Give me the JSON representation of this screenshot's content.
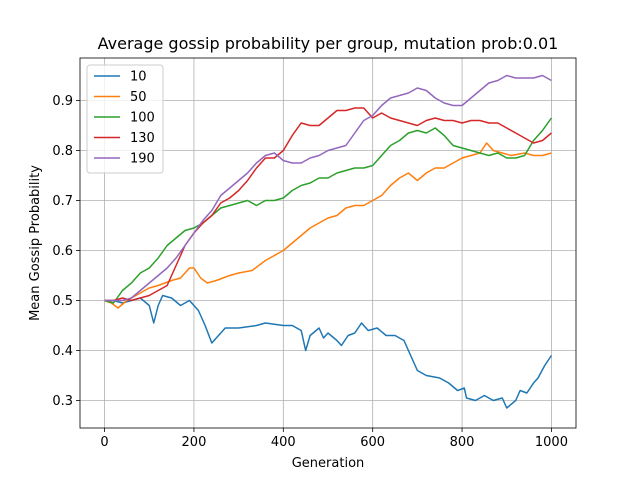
{
  "chart_data": {
    "type": "line",
    "title": "Average gossip probability per group, mutation prob:0.01",
    "xlabel": "Generation",
    "ylabel": "Mean Gossip Probability",
    "xlim": [
      -55,
      1055
    ],
    "ylim": [
      0.245,
      0.985
    ],
    "xticks": [
      0,
      200,
      400,
      600,
      800,
      1000
    ],
    "yticks": [
      0.3,
      0.4,
      0.5,
      0.6,
      0.7,
      0.8,
      0.9
    ],
    "grid": true,
    "legend_position": "top-left",
    "series": [
      {
        "name": "10",
        "color": "#1f77b4",
        "points": [
          [
            0,
            0.5
          ],
          [
            20,
            0.5
          ],
          [
            40,
            0.495
          ],
          [
            60,
            0.5
          ],
          [
            80,
            0.505
          ],
          [
            100,
            0.49
          ],
          [
            110,
            0.455
          ],
          [
            120,
            0.49
          ],
          [
            130,
            0.51
          ],
          [
            150,
            0.505
          ],
          [
            170,
            0.49
          ],
          [
            190,
            0.5
          ],
          [
            210,
            0.48
          ],
          [
            225,
            0.45
          ],
          [
            240,
            0.415
          ],
          [
            255,
            0.43
          ],
          [
            270,
            0.445
          ],
          [
            300,
            0.445
          ],
          [
            340,
            0.45
          ],
          [
            360,
            0.455
          ],
          [
            400,
            0.45
          ],
          [
            420,
            0.45
          ],
          [
            440,
            0.44
          ],
          [
            450,
            0.4
          ],
          [
            460,
            0.43
          ],
          [
            480,
            0.445
          ],
          [
            490,
            0.425
          ],
          [
            500,
            0.435
          ],
          [
            520,
            0.42
          ],
          [
            530,
            0.41
          ],
          [
            545,
            0.43
          ],
          [
            560,
            0.435
          ],
          [
            575,
            0.455
          ],
          [
            590,
            0.44
          ],
          [
            610,
            0.445
          ],
          [
            630,
            0.43
          ],
          [
            650,
            0.43
          ],
          [
            670,
            0.42
          ],
          [
            685,
            0.39
          ],
          [
            700,
            0.36
          ],
          [
            720,
            0.35
          ],
          [
            750,
            0.345
          ],
          [
            770,
            0.335
          ],
          [
            790,
            0.32
          ],
          [
            805,
            0.325
          ],
          [
            810,
            0.305
          ],
          [
            830,
            0.3
          ],
          [
            850,
            0.31
          ],
          [
            870,
            0.3
          ],
          [
            890,
            0.305
          ],
          [
            900,
            0.285
          ],
          [
            920,
            0.3
          ],
          [
            930,
            0.32
          ],
          [
            945,
            0.315
          ],
          [
            960,
            0.335
          ],
          [
            970,
            0.345
          ],
          [
            985,
            0.37
          ],
          [
            1000,
            0.39
          ]
        ]
      },
      {
        "name": "50",
        "color": "#ff7f0e",
        "points": [
          [
            0,
            0.5
          ],
          [
            15,
            0.495
          ],
          [
            30,
            0.485
          ],
          [
            50,
            0.5
          ],
          [
            70,
            0.51
          ],
          [
            100,
            0.525
          ],
          [
            120,
            0.53
          ],
          [
            150,
            0.54
          ],
          [
            170,
            0.545
          ],
          [
            190,
            0.565
          ],
          [
            200,
            0.565
          ],
          [
            215,
            0.545
          ],
          [
            230,
            0.535
          ],
          [
            250,
            0.54
          ],
          [
            280,
            0.55
          ],
          [
            300,
            0.555
          ],
          [
            330,
            0.56
          ],
          [
            360,
            0.58
          ],
          [
            380,
            0.59
          ],
          [
            400,
            0.6
          ],
          [
            420,
            0.615
          ],
          [
            440,
            0.63
          ],
          [
            460,
            0.645
          ],
          [
            480,
            0.655
          ],
          [
            500,
            0.665
          ],
          [
            520,
            0.67
          ],
          [
            540,
            0.685
          ],
          [
            560,
            0.69
          ],
          [
            580,
            0.69
          ],
          [
            600,
            0.7
          ],
          [
            620,
            0.71
          ],
          [
            640,
            0.73
          ],
          [
            660,
            0.745
          ],
          [
            680,
            0.755
          ],
          [
            700,
            0.74
          ],
          [
            720,
            0.755
          ],
          [
            740,
            0.765
          ],
          [
            760,
            0.765
          ],
          [
            780,
            0.775
          ],
          [
            800,
            0.785
          ],
          [
            820,
            0.79
          ],
          [
            840,
            0.795
          ],
          [
            855,
            0.815
          ],
          [
            870,
            0.8
          ],
          [
            890,
            0.795
          ],
          [
            910,
            0.79
          ],
          [
            940,
            0.795
          ],
          [
            960,
            0.79
          ],
          [
            980,
            0.79
          ],
          [
            1000,
            0.795
          ]
        ]
      },
      {
        "name": "100",
        "color": "#2ca02c",
        "points": [
          [
            0,
            0.5
          ],
          [
            20,
            0.495
          ],
          [
            40,
            0.52
          ],
          [
            60,
            0.535
          ],
          [
            80,
            0.555
          ],
          [
            100,
            0.565
          ],
          [
            120,
            0.585
          ],
          [
            140,
            0.61
          ],
          [
            160,
            0.625
          ],
          [
            180,
            0.64
          ],
          [
            200,
            0.645
          ],
          [
            220,
            0.655
          ],
          [
            240,
            0.67
          ],
          [
            260,
            0.685
          ],
          [
            280,
            0.69
          ],
          [
            300,
            0.695
          ],
          [
            320,
            0.7
          ],
          [
            340,
            0.69
          ],
          [
            360,
            0.7
          ],
          [
            380,
            0.7
          ],
          [
            400,
            0.705
          ],
          [
            420,
            0.72
          ],
          [
            440,
            0.73
          ],
          [
            460,
            0.735
          ],
          [
            480,
            0.745
          ],
          [
            500,
            0.745
          ],
          [
            520,
            0.755
          ],
          [
            540,
            0.76
          ],
          [
            560,
            0.765
          ],
          [
            580,
            0.765
          ],
          [
            600,
            0.77
          ],
          [
            620,
            0.79
          ],
          [
            640,
            0.81
          ],
          [
            660,
            0.82
          ],
          [
            680,
            0.835
          ],
          [
            700,
            0.84
          ],
          [
            720,
            0.835
          ],
          [
            740,
            0.845
          ],
          [
            760,
            0.83
          ],
          [
            780,
            0.81
          ],
          [
            800,
            0.805
          ],
          [
            820,
            0.8
          ],
          [
            840,
            0.795
          ],
          [
            860,
            0.79
          ],
          [
            880,
            0.795
          ],
          [
            900,
            0.785
          ],
          [
            920,
            0.785
          ],
          [
            940,
            0.79
          ],
          [
            960,
            0.82
          ],
          [
            980,
            0.84
          ],
          [
            1000,
            0.865
          ]
        ]
      },
      {
        "name": "130",
        "color": "#d62728",
        "points": [
          [
            0,
            0.5
          ],
          [
            20,
            0.5
          ],
          [
            40,
            0.505
          ],
          [
            60,
            0.5
          ],
          [
            80,
            0.505
          ],
          [
            100,
            0.51
          ],
          [
            120,
            0.52
          ],
          [
            140,
            0.53
          ],
          [
            160,
            0.57
          ],
          [
            180,
            0.61
          ],
          [
            200,
            0.635
          ],
          [
            220,
            0.655
          ],
          [
            240,
            0.67
          ],
          [
            260,
            0.695
          ],
          [
            280,
            0.705
          ],
          [
            300,
            0.72
          ],
          [
            320,
            0.74
          ],
          [
            340,
            0.765
          ],
          [
            360,
            0.785
          ],
          [
            380,
            0.785
          ],
          [
            400,
            0.8
          ],
          [
            420,
            0.83
          ],
          [
            440,
            0.855
          ],
          [
            460,
            0.85
          ],
          [
            480,
            0.85
          ],
          [
            500,
            0.865
          ],
          [
            520,
            0.88
          ],
          [
            540,
            0.88
          ],
          [
            560,
            0.885
          ],
          [
            580,
            0.885
          ],
          [
            600,
            0.865
          ],
          [
            620,
            0.875
          ],
          [
            640,
            0.865
          ],
          [
            660,
            0.86
          ],
          [
            680,
            0.855
          ],
          [
            700,
            0.85
          ],
          [
            720,
            0.86
          ],
          [
            740,
            0.865
          ],
          [
            760,
            0.86
          ],
          [
            780,
            0.86
          ],
          [
            800,
            0.855
          ],
          [
            820,
            0.86
          ],
          [
            840,
            0.86
          ],
          [
            860,
            0.855
          ],
          [
            880,
            0.855
          ],
          [
            900,
            0.845
          ],
          [
            920,
            0.835
          ],
          [
            940,
            0.825
          ],
          [
            960,
            0.815
          ],
          [
            980,
            0.82
          ],
          [
            1000,
            0.835
          ]
        ]
      },
      {
        "name": "190",
        "color": "#9467bd",
        "points": [
          [
            0,
            0.5
          ],
          [
            20,
            0.5
          ],
          [
            40,
            0.5
          ],
          [
            60,
            0.505
          ],
          [
            80,
            0.52
          ],
          [
            100,
            0.535
          ],
          [
            120,
            0.55
          ],
          [
            140,
            0.565
          ],
          [
            160,
            0.585
          ],
          [
            180,
            0.61
          ],
          [
            200,
            0.635
          ],
          [
            220,
            0.66
          ],
          [
            240,
            0.68
          ],
          [
            260,
            0.71
          ],
          [
            280,
            0.725
          ],
          [
            300,
            0.74
          ],
          [
            320,
            0.755
          ],
          [
            340,
            0.775
          ],
          [
            360,
            0.79
          ],
          [
            380,
            0.795
          ],
          [
            400,
            0.78
          ],
          [
            420,
            0.775
          ],
          [
            440,
            0.775
          ],
          [
            460,
            0.785
          ],
          [
            480,
            0.79
          ],
          [
            500,
            0.8
          ],
          [
            520,
            0.805
          ],
          [
            540,
            0.81
          ],
          [
            560,
            0.835
          ],
          [
            580,
            0.86
          ],
          [
            600,
            0.87
          ],
          [
            620,
            0.89
          ],
          [
            640,
            0.905
          ],
          [
            660,
            0.91
          ],
          [
            680,
            0.915
          ],
          [
            700,
            0.925
          ],
          [
            720,
            0.92
          ],
          [
            740,
            0.905
          ],
          [
            760,
            0.895
          ],
          [
            780,
            0.89
          ],
          [
            800,
            0.89
          ],
          [
            820,
            0.905
          ],
          [
            840,
            0.92
          ],
          [
            860,
            0.935
          ],
          [
            880,
            0.94
          ],
          [
            900,
            0.95
          ],
          [
            920,
            0.945
          ],
          [
            940,
            0.945
          ],
          [
            960,
            0.945
          ],
          [
            980,
            0.95
          ],
          [
            1000,
            0.94
          ]
        ]
      }
    ]
  }
}
